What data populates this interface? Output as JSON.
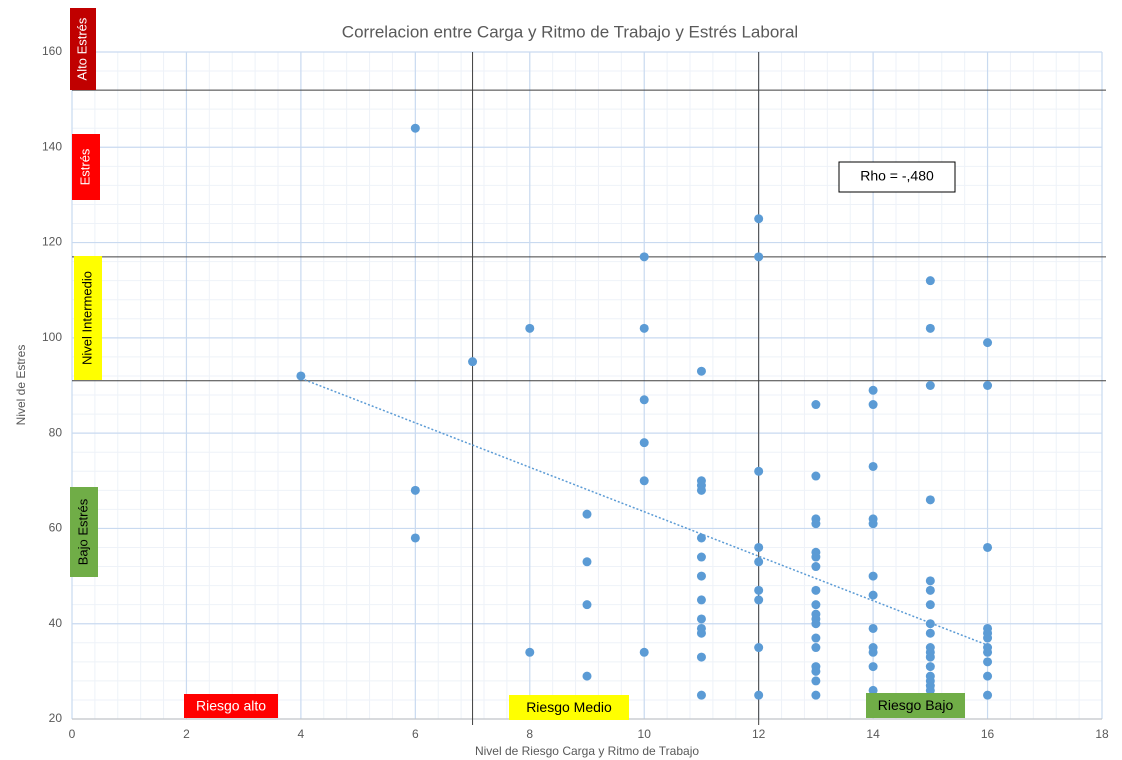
{
  "chart_data": {
    "type": "scatter",
    "title": "Correlacion entre Carga y Ritmo de Trabajo y Estrés Laboral",
    "x_label": "Nivel de Riesgo Carga y Ritmo de Trabajo",
    "y_label": "Nivel de Estres",
    "color": "#5b9bd5",
    "x": [
      4,
      6,
      6,
      6,
      7,
      8,
      8,
      9,
      9,
      9,
      9,
      10,
      10,
      10,
      10,
      10,
      10,
      11,
      11,
      11,
      11,
      11,
      11,
      11,
      11,
      11,
      11,
      11,
      11,
      11,
      12,
      12,
      12,
      12,
      12,
      12,
      12,
      12,
      12,
      13,
      13,
      13,
      13,
      13,
      13,
      13,
      13,
      13,
      13,
      13,
      13,
      13,
      13,
      13,
      13,
      13,
      13,
      14,
      14,
      14,
      14,
      14,
      14,
      14,
      14,
      14,
      14,
      14,
      14,
      15,
      15,
      15,
      15,
      15,
      15,
      15,
      15,
      15,
      15,
      15,
      15,
      15,
      15,
      15,
      15,
      15,
      15,
      16,
      16,
      16,
      16,
      16,
      16,
      16,
      16,
      16,
      16,
      16
    ],
    "values": [
      92,
      144,
      68,
      58,
      95,
      102,
      34,
      63,
      53,
      44,
      29,
      117,
      102,
      87,
      78,
      70,
      34,
      93,
      70,
      69,
      68,
      58,
      54,
      50,
      45,
      41,
      39,
      38,
      33,
      25,
      125,
      117,
      72,
      56,
      53,
      47,
      45,
      35,
      25,
      86,
      71,
      62,
      61,
      55,
      54,
      52,
      47,
      44,
      42,
      41,
      40,
      37,
      35,
      31,
      30,
      28,
      25,
      89,
      86,
      73,
      62,
      61,
      50,
      46,
      39,
      35,
      34,
      31,
      26,
      112,
      102,
      90,
      66,
      49,
      47,
      44,
      40,
      38,
      35,
      34,
      33,
      31,
      29,
      28,
      27,
      26,
      25,
      99,
      90,
      56,
      39,
      38,
      37,
      35,
      34,
      32,
      29,
      25
    ],
    "trendline": {
      "x": [
        4,
        16
      ],
      "y": [
        91.5,
        35.5
      ],
      "color": "#5b9bd5"
    },
    "hlines": [
      152,
      117,
      91
    ],
    "vlines": [
      7,
      12
    ],
    "xlim": [
      0,
      18
    ],
    "xticks": [
      0,
      2,
      4,
      6,
      8,
      10,
      12,
      14,
      16,
      18
    ],
    "ylim": [
      20,
      160
    ],
    "yticks": [
      20,
      40,
      60,
      80,
      100,
      120,
      140,
      160
    ],
    "grid": true,
    "minor_grid": true,
    "annotation": "Rho = -,480",
    "y_zones": [
      {
        "label": "Alto Estrés",
        "color": "#c00000"
      },
      {
        "label": "Estrés",
        "color": "#ff0000"
      },
      {
        "label": "Nivel Intermedio",
        "color": "#ffff00"
      },
      {
        "label": "Bajo Estrés",
        "color": "#70ad47"
      }
    ],
    "x_zones": [
      {
        "label": "Riesgo alto",
        "color": "#ff0000"
      },
      {
        "label": "Riesgo Medio",
        "color": "#ffff00"
      },
      {
        "label": "Riesgo Bajo",
        "color": "#70ad47"
      }
    ]
  }
}
